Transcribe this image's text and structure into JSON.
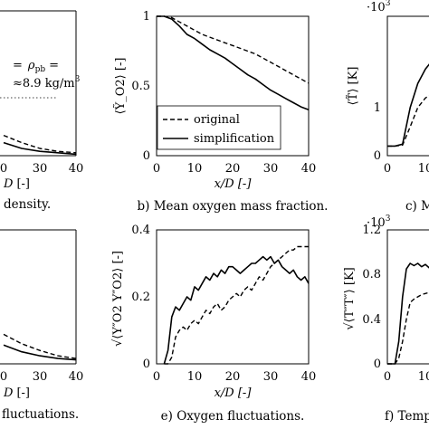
{
  "chart_data": [
    {
      "id": "a",
      "type": "line",
      "caption_tail": "density.",
      "annotation_lines": [
        "= ρ",
        "8.9 kg/m"
      ],
      "annotation_sub": "pb",
      "annotation_sup": "3",
      "annotation_eq": "=",
      "xticks": [
        "0",
        "30",
        "40"
      ],
      "xlabel_tail": "[-]",
      "xlim": [
        0,
        40
      ],
      "series": [
        {
          "style": "dashed",
          "x": [
            0,
            10,
            20,
            30,
            40
          ],
          "y": [
            0.14,
            0.09,
            0.05,
            0.03,
            0.02
          ]
        },
        {
          "style": "solid",
          "x": [
            0,
            10,
            20,
            30,
            40
          ],
          "y": [
            0.09,
            0.05,
            0.03,
            0.02,
            0.01
          ]
        }
      ]
    },
    {
      "id": "b",
      "type": "line",
      "caption": "b) Mean oxygen mass fraction.",
      "ylabel": "⟨Ỹ_O2⟩ [-]",
      "xlabel": "x/D [-]",
      "yticks": [
        "0",
        "0.5",
        "1"
      ],
      "xticks": [
        "0",
        "10",
        "20",
        "30",
        "40"
      ],
      "xlim": [
        0,
        40
      ],
      "ylim": [
        0,
        1
      ],
      "legend": [
        {
          "name": "original",
          "style": "dashed"
        },
        {
          "name": "simplification",
          "style": "solid"
        }
      ],
      "series": [
        {
          "name": "original",
          "style": "dashed",
          "x": [
            0,
            2,
            4,
            6,
            8,
            10,
            12,
            14,
            16,
            18,
            20,
            22,
            24,
            26,
            28,
            30,
            32,
            34,
            36,
            38,
            40
          ],
          "y": [
            1.0,
            1.0,
            0.99,
            0.96,
            0.93,
            0.9,
            0.87,
            0.85,
            0.83,
            0.81,
            0.79,
            0.77,
            0.75,
            0.73,
            0.7,
            0.67,
            0.64,
            0.61,
            0.58,
            0.55,
            0.52
          ]
        },
        {
          "name": "simplification",
          "style": "solid",
          "x": [
            0,
            2,
            4,
            6,
            8,
            10,
            12,
            14,
            16,
            18,
            20,
            22,
            24,
            26,
            28,
            30,
            32,
            34,
            36,
            38,
            40
          ],
          "y": [
            1.0,
            1.0,
            0.98,
            0.93,
            0.87,
            0.84,
            0.8,
            0.76,
            0.73,
            0.7,
            0.66,
            0.62,
            0.58,
            0.55,
            0.51,
            0.47,
            0.44,
            0.41,
            0.38,
            0.35,
            0.33
          ]
        }
      ]
    },
    {
      "id": "c",
      "type": "line",
      "caption_head": "c) M",
      "ylabel": "⟨T̃⟩ [K]",
      "exponent": "·10",
      "exponent_sup": "3",
      "yticks": [
        "0",
        "1"
      ],
      "xticks": [
        "0",
        "10"
      ],
      "ylim": [
        0,
        1.6
      ],
      "series": [
        {
          "style": "solid",
          "x": [
            0,
            2,
            4,
            6,
            8,
            10,
            12,
            14
          ],
          "y": [
            0.1,
            0.1,
            0.12,
            0.5,
            0.75,
            0.9,
            1.0,
            1.05
          ]
        },
        {
          "style": "dashed",
          "x": [
            0,
            2,
            4,
            6,
            8,
            10,
            12,
            14
          ],
          "y": [
            0.1,
            0.1,
            0.11,
            0.3,
            0.5,
            0.6,
            0.65,
            0.68
          ]
        }
      ]
    },
    {
      "id": "d",
      "type": "line",
      "caption_tail": "fluctuations.",
      "xticks": [
        "0",
        "30",
        "40"
      ],
      "xlabel_tail": "[-]",
      "series": [
        {
          "style": "dashed",
          "x": [
            0,
            10,
            20,
            30,
            40
          ],
          "y": [
            0.22,
            0.15,
            0.1,
            0.06,
            0.04
          ]
        },
        {
          "style": "solid",
          "x": [
            0,
            10,
            20,
            30,
            40
          ],
          "y": [
            0.14,
            0.09,
            0.06,
            0.04,
            0.03
          ]
        }
      ]
    },
    {
      "id": "e",
      "type": "line",
      "caption": "e) Oxygen fluctuations.",
      "ylabel": "√⟨Y″O2 Y″O2⟩ [-]",
      "xlabel": "x/D [-]",
      "yticks": [
        "0",
        "0.2",
        "0.4"
      ],
      "xticks": [
        "0",
        "10",
        "20",
        "30",
        "40"
      ],
      "xlim": [
        0,
        40
      ],
      "ylim": [
        0,
        0.4
      ],
      "series": [
        {
          "name": "simplification",
          "style": "solid",
          "x": [
            2,
            3,
            4,
            5,
            6,
            7,
            8,
            9,
            10,
            11,
            12,
            13,
            14,
            15,
            16,
            17,
            18,
            19,
            20,
            21,
            22,
            23,
            24,
            25,
            26,
            27,
            28,
            29,
            30,
            31,
            32,
            33,
            34,
            35,
            36,
            37,
            38,
            39,
            40
          ],
          "y": [
            0.0,
            0.04,
            0.14,
            0.17,
            0.16,
            0.18,
            0.2,
            0.19,
            0.23,
            0.22,
            0.24,
            0.26,
            0.25,
            0.27,
            0.26,
            0.28,
            0.27,
            0.29,
            0.29,
            0.28,
            0.27,
            0.28,
            0.29,
            0.3,
            0.3,
            0.31,
            0.32,
            0.31,
            0.32,
            0.3,
            0.31,
            0.29,
            0.28,
            0.27,
            0.28,
            0.26,
            0.25,
            0.26,
            0.24
          ]
        },
        {
          "name": "original",
          "style": "dashed",
          "x": [
            2,
            3,
            4,
            5,
            6,
            7,
            8,
            9,
            10,
            11,
            12,
            13,
            14,
            15,
            16,
            17,
            18,
            19,
            20,
            21,
            22,
            23,
            24,
            25,
            26,
            27,
            28,
            29,
            30,
            31,
            32,
            33,
            34,
            35,
            36,
            37,
            38,
            39,
            40
          ],
          "y": [
            0.0,
            0.0,
            0.02,
            0.08,
            0.1,
            0.11,
            0.1,
            0.12,
            0.13,
            0.12,
            0.14,
            0.16,
            0.15,
            0.17,
            0.18,
            0.16,
            0.17,
            0.19,
            0.2,
            0.21,
            0.2,
            0.22,
            0.23,
            0.22,
            0.24,
            0.26,
            0.25,
            0.27,
            0.29,
            0.3,
            0.31,
            0.32,
            0.33,
            0.34,
            0.34,
            0.35,
            0.35,
            0.35,
            0.35
          ]
        }
      ]
    },
    {
      "id": "f",
      "type": "line",
      "caption_head": "f) Temp",
      "ylabel": "√⟨T″T″⟩ [K]",
      "exponent": "·10",
      "exponent_sup": "3",
      "yticks": [
        "0",
        "0.4",
        "0.8",
        "1.2"
      ],
      "xticks": [
        "0",
        "10"
      ],
      "ylim": [
        0,
        1.2
      ],
      "series": [
        {
          "style": "solid",
          "x": [
            0,
            2,
            3,
            4,
            5,
            6,
            7,
            8,
            9,
            10,
            11,
            12,
            13,
            14
          ],
          "y": [
            0,
            0.0,
            0.2,
            0.6,
            0.85,
            0.9,
            0.88,
            0.9,
            0.87,
            0.89,
            0.86,
            0.88,
            0.87,
            0.86
          ]
        },
        {
          "style": "dashed",
          "x": [
            0,
            2,
            3,
            4,
            5,
            6,
            7,
            8,
            9,
            10,
            11,
            12,
            13,
            14
          ],
          "y": [
            0,
            0.0,
            0.05,
            0.2,
            0.4,
            0.55,
            0.58,
            0.6,
            0.62,
            0.63,
            0.64,
            0.66,
            0.67,
            0.68
          ]
        }
      ]
    }
  ]
}
